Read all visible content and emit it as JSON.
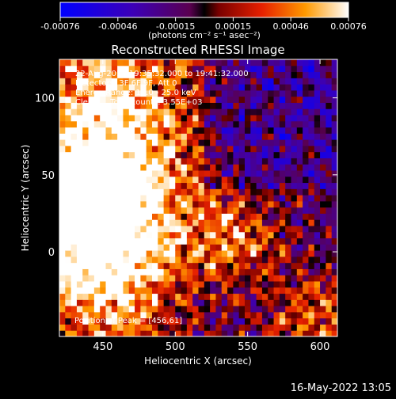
{
  "chart_data": {
    "type": "heatmap",
    "title": "Reconstructed RHESSI Image",
    "xlabel": "Heliocentric X (arcsec)",
    "ylabel": "Heliocentric Y (arcsec)",
    "xlim": [
      420,
      612
    ],
    "ylim": [
      -55,
      125
    ],
    "x_ticks": [
      450,
      500,
      550,
      600
    ],
    "y_ticks": [
      0,
      50,
      100
    ],
    "colorbar": {
      "ticks": [
        "-0.00076",
        "-0.00046",
        "-0.00015",
        "0.00015",
        "0.00046",
        "0.00076"
      ],
      "units": "(photons cm⁻² s⁻¹ asec⁻²)",
      "range": [
        -0.00076,
        0.00076
      ]
    },
    "annotations": [
      "22-Aug-2014 19:35:32.000 to 19:41:32.000",
      "Detectors: 3F 6F 9F, Att 0",
      "Energy Range: 12.0 - 25.0 keV",
      "Clean     Total counts: 3.55E+03"
    ],
    "peak_label": "Position of Peak = [456,61]",
    "peak": [
      456,
      61
    ],
    "grid": false
  },
  "footer": {
    "timestamp": "16-May-2022 13:05"
  }
}
